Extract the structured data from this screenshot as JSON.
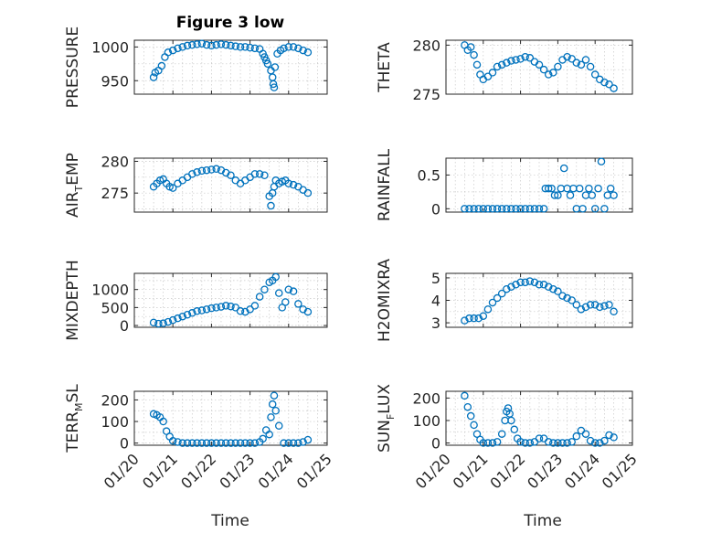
{
  "figure": {
    "title": "Figure 3 low",
    "xlabel": "Time",
    "accent_color": "#0072BD"
  },
  "chart_data": [
    {
      "type": "scatter",
      "id": "pressure",
      "ylabel": "PRESSURE",
      "xlim": [
        "2024-01-20",
        "2024-01-25"
      ],
      "ylim": [
        930,
        1010
      ],
      "yticks": [
        950,
        1000
      ],
      "ytick_labels": [
        "950",
        "1000"
      ],
      "xticks": [
        "01/20",
        "01/21",
        "01/22",
        "01/23",
        "01/24",
        "01/25"
      ],
      "x_tick_labels_shown": false,
      "grid": true,
      "x": [
        "01/20 12:00",
        "01/20 13:00",
        "01/20 15:00",
        "01/20 17:00",
        "01/20 19:00",
        "01/20 21:00",
        "01/21 00:00",
        "01/21 03:00",
        "01/21 06:00",
        "01/21 09:00",
        "01/21 12:00",
        "01/21 15:00",
        "01/21 18:00",
        "01/21 21:00",
        "01/22 00:00",
        "01/22 03:00",
        "01/22 06:00",
        "01/22 09:00",
        "01/22 12:00",
        "01/22 15:00",
        "01/22 18:00",
        "01/22 21:00",
        "01/23 00:00",
        "01/23 03:00",
        "01/23 06:00",
        "01/23 08:00",
        "01/23 09:00",
        "01/23 10:00",
        "01/23 11:00",
        "01/23 13:00",
        "01/23 14:00",
        "01/23 14:30",
        "01/23 15:00",
        "01/23 15:30",
        "01/23 17:00",
        "01/23 19:00",
        "01/23 21:00",
        "01/24 00:00",
        "01/24 03:00",
        "01/24 06:00",
        "01/24 09:00",
        "01/24 12:00"
      ],
      "values": [
        955,
        962,
        965,
        972,
        985,
        992,
        995,
        998,
        1000,
        1002,
        1003,
        1004,
        1005,
        1003,
        1002,
        1003,
        1004,
        1003,
        1002,
        1001,
        1000,
        1000,
        999,
        998,
        997,
        990,
        985,
        980,
        975,
        965,
        955,
        945,
        940,
        970,
        990,
        995,
        998,
        1000,
        1000,
        998,
        995,
        992
      ]
    },
    {
      "type": "scatter",
      "id": "theta",
      "ylabel": "THETA",
      "xlim": [
        "2024-01-20",
        "2024-01-25"
      ],
      "ylim": [
        275,
        280.5
      ],
      "yticks": [
        275,
        280
      ],
      "ytick_labels": [
        "275",
        "280"
      ],
      "xticks": [
        "01/20",
        "01/21",
        "01/22",
        "01/23",
        "01/24",
        "01/25"
      ],
      "x_tick_labels_shown": false,
      "grid": true,
      "x": [
        "01/20 12:00",
        "01/20 14:00",
        "01/20 16:00",
        "01/20 18:00",
        "01/20 20:00",
        "01/20 22:00",
        "01/21 00:00",
        "01/21 03:00",
        "01/21 06:00",
        "01/21 09:00",
        "01/21 12:00",
        "01/21 15:00",
        "01/21 18:00",
        "01/21 21:00",
        "01/22 00:00",
        "01/22 03:00",
        "01/22 06:00",
        "01/22 09:00",
        "01/22 12:00",
        "01/22 15:00",
        "01/22 18:00",
        "01/22 21:00",
        "01/23 00:00",
        "01/23 03:00",
        "01/23 06:00",
        "01/23 09:00",
        "01/23 12:00",
        "01/23 15:00",
        "01/23 18:00",
        "01/23 21:00",
        "01/24 00:00",
        "01/24 03:00",
        "01/24 06:00",
        "01/24 09:00",
        "01/24 12:00"
      ],
      "values": [
        280,
        279.5,
        279.8,
        279,
        278,
        277,
        276.5,
        276.8,
        277.2,
        277.8,
        278,
        278.2,
        278.4,
        278.5,
        278.6,
        278.8,
        278.7,
        278.3,
        278,
        277.5,
        277,
        277.2,
        277.8,
        278.5,
        278.8,
        278.6,
        278.2,
        278,
        278.5,
        277.8,
        277,
        276.5,
        276.2,
        276,
        275.6
      ]
    },
    {
      "type": "scatter",
      "id": "air_temp",
      "ylabel_main": "AIR",
      "ylabel_sub": "T",
      "ylabel_tail": "EMP",
      "xlim": [
        "2024-01-20",
        "2024-01-25"
      ],
      "ylim": [
        272,
        280.5
      ],
      "yticks": [
        275,
        280
      ],
      "ytick_labels": [
        "275",
        "280"
      ],
      "xticks": [
        "01/20",
        "01/21",
        "01/22",
        "01/23",
        "01/24",
        "01/25"
      ],
      "x_tick_labels_shown": false,
      "grid": true,
      "x": [
        "01/20 12:00",
        "01/20 14:00",
        "01/20 16:00",
        "01/20 18:00",
        "01/20 20:00",
        "01/20 22:00",
        "01/21 00:00",
        "01/21 03:00",
        "01/21 06:00",
        "01/21 09:00",
        "01/21 12:00",
        "01/21 15:00",
        "01/21 18:00",
        "01/21 21:00",
        "01/22 00:00",
        "01/22 03:00",
        "01/22 06:00",
        "01/22 09:00",
        "01/22 12:00",
        "01/22 15:00",
        "01/22 18:00",
        "01/22 21:00",
        "01/23 00:00",
        "01/23 03:00",
        "01/23 06:00",
        "01/23 09:00",
        "01/23 12:00",
        "01/23 13:00",
        "01/23 14:00",
        "01/23 15:00",
        "01/23 16:00",
        "01/23 18:00",
        "01/23 20:00",
        "01/23 22:00",
        "01/24 00:00",
        "01/24 03:00",
        "01/24 06:00",
        "01/24 09:00",
        "01/24 12:00"
      ],
      "values": [
        276,
        276.5,
        277,
        277.2,
        276.5,
        276,
        275.8,
        276.5,
        277,
        277.5,
        278,
        278.3,
        278.5,
        278.6,
        278.7,
        278.8,
        278.6,
        278.2,
        277.8,
        277,
        276.5,
        277,
        277.5,
        278,
        278,
        277.8,
        274.5,
        273,
        275,
        276,
        277,
        276.5,
        276.8,
        277,
        276.5,
        276.3,
        276,
        275.5,
        275
      ]
    },
    {
      "type": "scatter",
      "id": "rainfall",
      "ylabel": "RAINFALL",
      "xlim": [
        "2024-01-20",
        "2024-01-25"
      ],
      "ylim": [
        -0.05,
        0.75
      ],
      "yticks": [
        0,
        0.5
      ],
      "ytick_labels": [
        "0",
        "0.5"
      ],
      "xticks": [
        "01/20",
        "01/21",
        "01/22",
        "01/23",
        "01/24",
        "01/25"
      ],
      "x_tick_labels_shown": false,
      "grid": true,
      "x": [
        "01/20 12:00",
        "01/20 15:00",
        "01/20 18:00",
        "01/20 21:00",
        "01/21 00:00",
        "01/21 03:00",
        "01/21 06:00",
        "01/21 09:00",
        "01/21 12:00",
        "01/21 15:00",
        "01/21 18:00",
        "01/21 21:00",
        "01/22 00:00",
        "01/22 03:00",
        "01/22 06:00",
        "01/22 09:00",
        "01/22 12:00",
        "01/22 15:00",
        "01/22 16:00",
        "01/22 18:00",
        "01/22 20:00",
        "01/22 22:00",
        "01/23 00:00",
        "01/23 02:00",
        "01/23 04:00",
        "01/23 06:00",
        "01/23 08:00",
        "01/23 10:00",
        "01/23 12:00",
        "01/23 14:00",
        "01/23 16:00",
        "01/23 18:00",
        "01/23 20:00",
        "01/23 22:00",
        "01/24 00:00",
        "01/24 02:00",
        "01/24 04:00",
        "01/24 06:00",
        "01/24 08:00",
        "01/24 10:00",
        "01/24 12:00"
      ],
      "values": [
        0,
        0,
        0,
        0,
        0,
        0,
        0,
        0,
        0,
        0,
        0,
        0,
        0,
        0,
        0,
        0,
        0,
        0,
        0.3,
        0.3,
        0.3,
        0.2,
        0.2,
        0.3,
        0.6,
        0.3,
        0.2,
        0.3,
        0,
        0.3,
        0,
        0.2,
        0.3,
        0.2,
        0,
        0.3,
        0.7,
        0,
        0.2,
        0.3,
        0.2
      ]
    },
    {
      "type": "scatter",
      "id": "mixdepth",
      "ylabel": "MIXDEPTH",
      "xlim": [
        "2024-01-20",
        "2024-01-25"
      ],
      "ylim": [
        -50,
        1450
      ],
      "yticks": [
        0,
        500,
        1000
      ],
      "ytick_labels": [
        "0",
        "500",
        "1000"
      ],
      "xticks": [
        "01/20",
        "01/21",
        "01/22",
        "01/23",
        "01/24",
        "01/25"
      ],
      "x_tick_labels_shown": false,
      "grid": true,
      "x": [
        "01/20 12:00",
        "01/20 15:00",
        "01/20 18:00",
        "01/20 21:00",
        "01/21 00:00",
        "01/21 03:00",
        "01/21 06:00",
        "01/21 09:00",
        "01/21 12:00",
        "01/21 15:00",
        "01/21 18:00",
        "01/21 21:00",
        "01/22 00:00",
        "01/22 03:00",
        "01/22 06:00",
        "01/22 09:00",
        "01/22 12:00",
        "01/22 15:00",
        "01/22 18:00",
        "01/22 21:00",
        "01/23 00:00",
        "01/23 03:00",
        "01/23 06:00",
        "01/23 09:00",
        "01/23 12:00",
        "01/23 14:00",
        "01/23 16:00",
        "01/23 18:00",
        "01/23 20:00",
        "01/23 22:00",
        "01/24 00:00",
        "01/24 03:00",
        "01/24 06:00",
        "01/24 09:00",
        "01/24 12:00"
      ],
      "values": [
        80,
        50,
        60,
        100,
        150,
        200,
        250,
        300,
        350,
        400,
        420,
        450,
        480,
        500,
        520,
        550,
        530,
        500,
        400,
        380,
        450,
        550,
        800,
        1000,
        1200,
        1250,
        1350,
        900,
        500,
        650,
        1000,
        950,
        600,
        450,
        380
      ]
    },
    {
      "type": "scatter",
      "id": "h2omixra",
      "ylabel": "H2OMIXRA",
      "xlim": [
        "2024-01-20",
        "2024-01-25"
      ],
      "ylim": [
        2.8,
        5.2
      ],
      "yticks": [
        3,
        4,
        5
      ],
      "ytick_labels": [
        "3",
        "4",
        "5"
      ],
      "xticks": [
        "01/20",
        "01/21",
        "01/22",
        "01/23",
        "01/24",
        "01/25"
      ],
      "x_tick_labels_shown": false,
      "grid": true,
      "x": [
        "01/20 12:00",
        "01/20 15:00",
        "01/20 18:00",
        "01/20 21:00",
        "01/21 00:00",
        "01/21 03:00",
        "01/21 06:00",
        "01/21 09:00",
        "01/21 12:00",
        "01/21 15:00",
        "01/21 18:00",
        "01/21 21:00",
        "01/22 00:00",
        "01/22 03:00",
        "01/22 06:00",
        "01/22 09:00",
        "01/22 12:00",
        "01/22 15:00",
        "01/22 18:00",
        "01/22 21:00",
        "01/23 00:00",
        "01/23 03:00",
        "01/23 06:00",
        "01/23 09:00",
        "01/23 12:00",
        "01/23 15:00",
        "01/23 18:00",
        "01/23 21:00",
        "01/24 00:00",
        "01/24 03:00",
        "01/24 06:00",
        "01/24 09:00",
        "01/24 12:00"
      ],
      "values": [
        3.1,
        3.2,
        3.2,
        3.2,
        3.3,
        3.6,
        3.9,
        4.1,
        4.3,
        4.5,
        4.6,
        4.7,
        4.8,
        4.8,
        4.85,
        4.8,
        4.7,
        4.7,
        4.6,
        4.5,
        4.4,
        4.2,
        4.1,
        4.0,
        3.8,
        3.6,
        3.7,
        3.8,
        3.8,
        3.7,
        3.75,
        3.8,
        3.5
      ]
    },
    {
      "type": "scatter",
      "id": "terr_msl",
      "ylabel_main": "TERR",
      "ylabel_sub": "M",
      "ylabel_tail": "SL",
      "xlim": [
        "2024-01-20",
        "2024-01-25"
      ],
      "ylim": [
        -10,
        240
      ],
      "yticks": [
        0,
        100,
        200
      ],
      "ytick_labels": [
        "0",
        "100",
        "200"
      ],
      "xticks": [
        "01/20",
        "01/21",
        "01/22",
        "01/23",
        "01/24",
        "01/25"
      ],
      "xtick_labels": [
        "01/20",
        "01/21",
        "01/22",
        "01/23",
        "01/24",
        "01/25"
      ],
      "x_tick_labels_shown": true,
      "grid": true,
      "x": [
        "01/20 12:00",
        "01/20 14:00",
        "01/20 16:00",
        "01/20 18:00",
        "01/20 20:00",
        "01/20 22:00",
        "01/21 00:00",
        "01/21 03:00",
        "01/21 06:00",
        "01/21 09:00",
        "01/21 12:00",
        "01/21 15:00",
        "01/21 18:00",
        "01/21 21:00",
        "01/22 00:00",
        "01/22 03:00",
        "01/22 06:00",
        "01/22 09:00",
        "01/22 12:00",
        "01/22 15:00",
        "01/22 18:00",
        "01/22 21:00",
        "01/23 00:00",
        "01/23 03:00",
        "01/23 06:00",
        "01/23 08:00",
        "01/23 10:00",
        "01/23 12:00",
        "01/23 13:00",
        "01/23 14:00",
        "01/23 15:00",
        "01/23 16:00",
        "01/23 18:00",
        "01/23 21:00",
        "01/24 00:00",
        "01/24 03:00",
        "01/24 06:00",
        "01/24 09:00",
        "01/24 12:00"
      ],
      "values": [
        135,
        130,
        120,
        100,
        55,
        30,
        10,
        5,
        0,
        0,
        0,
        0,
        0,
        0,
        0,
        0,
        0,
        0,
        0,
        0,
        0,
        0,
        0,
        0,
        5,
        20,
        60,
        40,
        120,
        180,
        220,
        150,
        80,
        0,
        0,
        0,
        0,
        5,
        15
      ]
    },
    {
      "type": "scatter",
      "id": "sun_flux",
      "ylabel_main": "SUN",
      "ylabel_sub": "F",
      "ylabel_tail": "LUX",
      "xlim": [
        "2024-01-20",
        "2024-01-25"
      ],
      "ylim": [
        -10,
        230
      ],
      "yticks": [
        0,
        100,
        200
      ],
      "ytick_labels": [
        "0",
        "100",
        "200"
      ],
      "xticks": [
        "01/20",
        "01/21",
        "01/22",
        "01/23",
        "01/24",
        "01/25"
      ],
      "xtick_labels": [
        "01/20",
        "01/21",
        "01/22",
        "01/23",
        "01/24",
        "01/25"
      ],
      "x_tick_labels_shown": true,
      "grid": true,
      "x": [
        "01/20 12:00",
        "01/20 14:00",
        "01/20 16:00",
        "01/20 18:00",
        "01/20 20:00",
        "01/20 22:00",
        "01/21 00:00",
        "01/21 03:00",
        "01/21 06:00",
        "01/21 09:00",
        "01/21 12:00",
        "01/21 14:00",
        "01/21 15:00",
        "01/21 16:00",
        "01/21 17:00",
        "01/21 18:00",
        "01/21 20:00",
        "01/21 22:00",
        "01/22 00:00",
        "01/22 03:00",
        "01/22 06:00",
        "01/22 09:00",
        "01/22 12:00",
        "01/22 15:00",
        "01/22 18:00",
        "01/22 21:00",
        "01/23 00:00",
        "01/23 03:00",
        "01/23 06:00",
        "01/23 09:00",
        "01/23 12:00",
        "01/23 15:00",
        "01/23 18:00",
        "01/23 21:00",
        "01/24 00:00",
        "01/24 03:00",
        "01/24 06:00",
        "01/24 09:00",
        "01/24 12:00"
      ],
      "values": [
        210,
        160,
        120,
        80,
        40,
        15,
        0,
        0,
        0,
        5,
        40,
        100,
        140,
        155,
        130,
        100,
        60,
        20,
        5,
        0,
        0,
        5,
        20,
        20,
        5,
        0,
        0,
        0,
        0,
        5,
        30,
        55,
        40,
        10,
        0,
        0,
        10,
        35,
        25
      ]
    }
  ]
}
